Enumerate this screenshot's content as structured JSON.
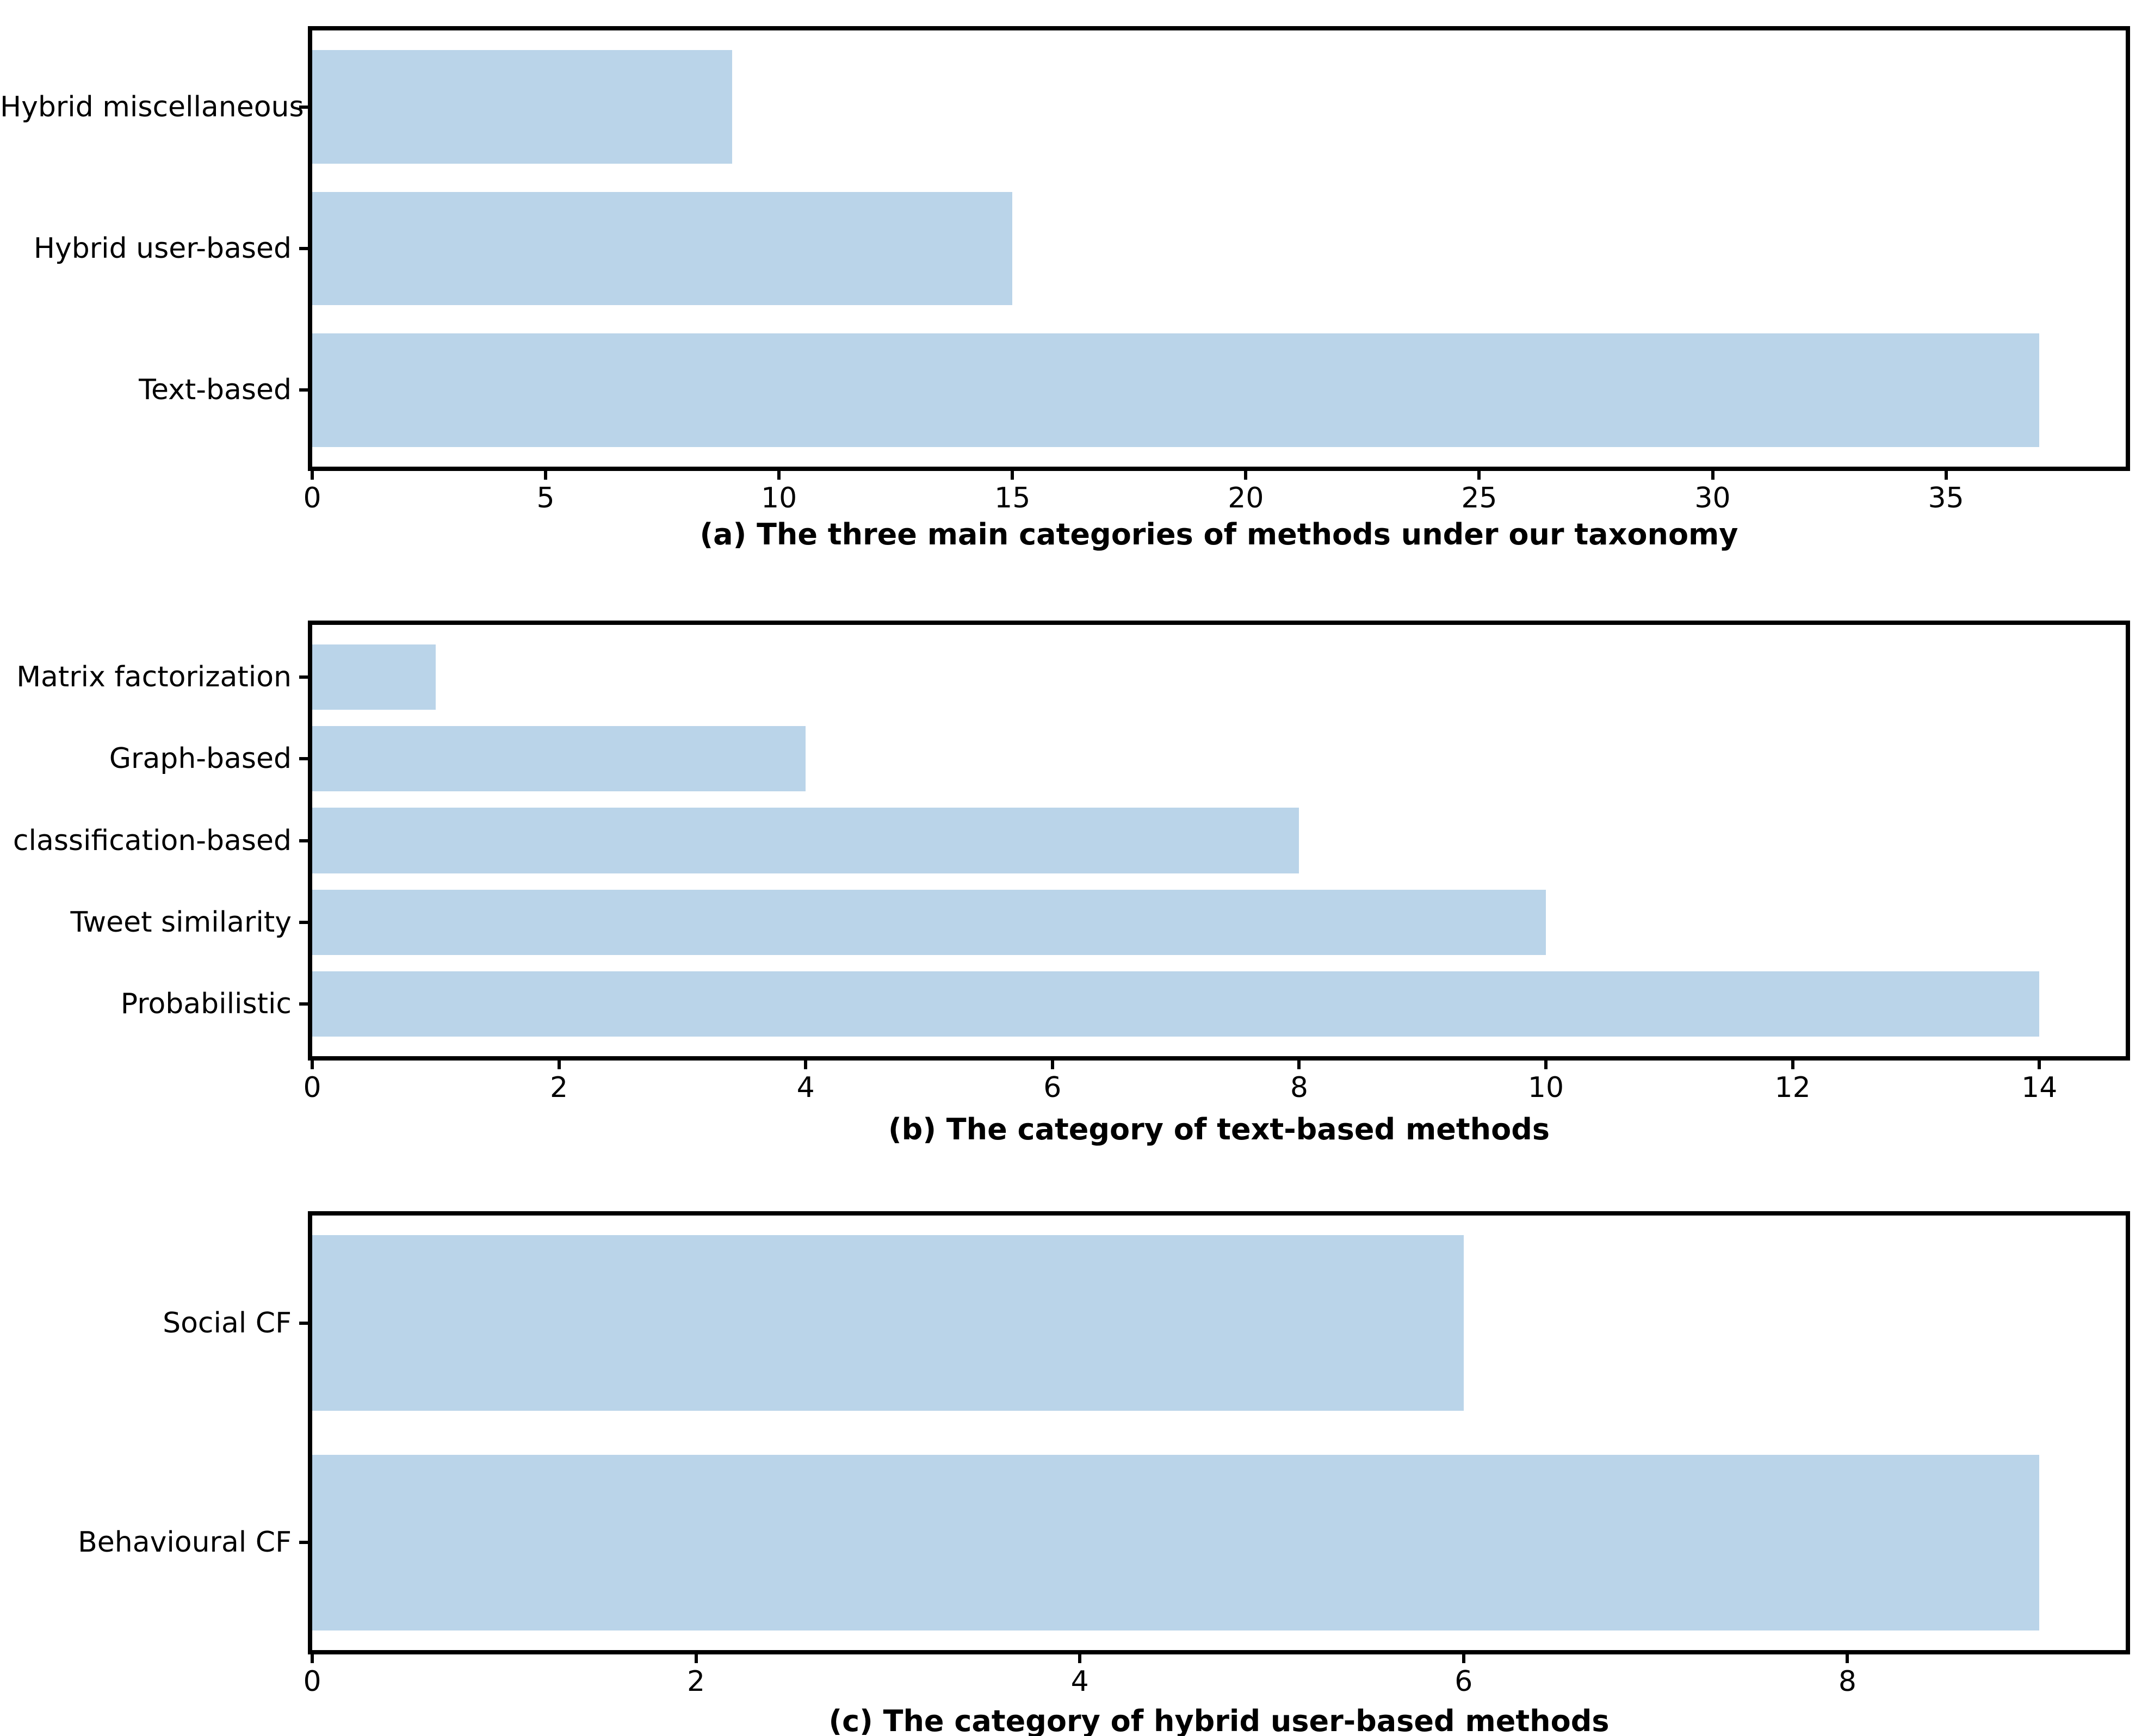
{
  "figure": {
    "background": "#ffffff",
    "bar_color": "#bad4e9",
    "axis_color": "#000000",
    "text_color": "#000000"
  },
  "chart_data": [
    {
      "id": "a",
      "type": "bar",
      "orientation": "horizontal",
      "title": "(a) The three main categories of methods under our taxonomy",
      "categories": [
        "Hybrid miscellaneous",
        "Hybrid user-based",
        "Text-based"
      ],
      "values": [
        9,
        15,
        37
      ],
      "x_ticks": [
        0,
        5,
        10,
        15,
        20,
        25,
        30,
        35
      ],
      "xlim": [
        0,
        38.85
      ],
      "xlabel": "",
      "ylabel": "",
      "grid": false,
      "legend": null
    },
    {
      "id": "b",
      "type": "bar",
      "orientation": "horizontal",
      "title": "(b) The category of text-based methods",
      "categories": [
        "Matrix factorization",
        "Graph-based",
        "classification-based",
        "Tweet similarity",
        "Probabilistic"
      ],
      "values": [
        1,
        4,
        8,
        10,
        14
      ],
      "x_ticks": [
        0,
        2,
        4,
        6,
        8,
        10,
        12,
        14
      ],
      "xlim": [
        0,
        14.7
      ],
      "xlabel": "",
      "ylabel": "",
      "grid": false,
      "legend": null
    },
    {
      "id": "c",
      "type": "bar",
      "orientation": "horizontal",
      "title": "(c) The category of hybrid user-based methods",
      "categories": [
        "Social CF",
        "Behavioural CF"
      ],
      "values": [
        6,
        9
      ],
      "x_ticks": [
        0,
        2,
        4,
        6,
        8
      ],
      "xlim": [
        0,
        9.45
      ],
      "xlabel": "",
      "ylabel": "",
      "grid": false,
      "legend": null
    }
  ]
}
